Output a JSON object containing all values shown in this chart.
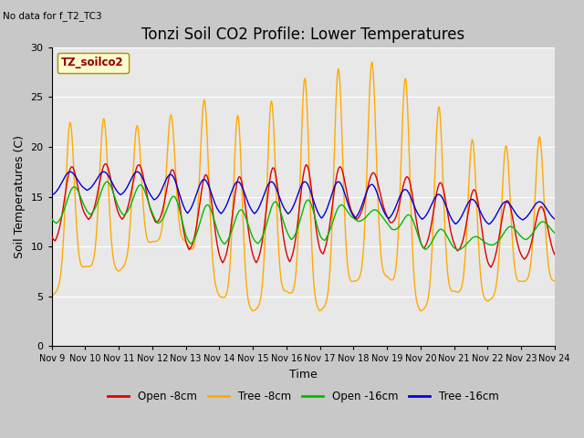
{
  "title": "Tonzi Soil CO2 Profile: Lower Temperatures",
  "subtitle": "No data for f_T2_TC3",
  "ylabel": "Soil Temperatures (C)",
  "xlabel": "Time",
  "legend_label": "TZ_soilco2",
  "ylim": [
    0,
    30
  ],
  "xlim": [
    0,
    15
  ],
  "xtick_labels": [
    "Nov 9",
    "Nov 10",
    "Nov 11",
    "Nov 12",
    "Nov 13",
    "Nov 14",
    "Nov 15",
    "Nov 16",
    "Nov 17",
    "Nov 18",
    "Nov 19",
    "Nov 20",
    "Nov 21",
    "Nov 22",
    "Nov 23",
    "Nov 24"
  ],
  "xtick_positions": [
    0,
    1,
    2,
    3,
    4,
    5,
    6,
    7,
    8,
    9,
    10,
    11,
    12,
    13,
    14,
    15
  ],
  "colors": {
    "open_8cm": "#dd0000",
    "tree_8cm": "#ffaa00",
    "open_16cm": "#00bb00",
    "tree_16cm": "#0000dd"
  },
  "background_color": "#e8e8e8",
  "legend_bg": "#ffffcc",
  "legend_border": "#aa8800",
  "grid_color": "#ffffff",
  "title_fontsize": 12,
  "axis_fontsize": 9,
  "tick_fontsize": 8
}
